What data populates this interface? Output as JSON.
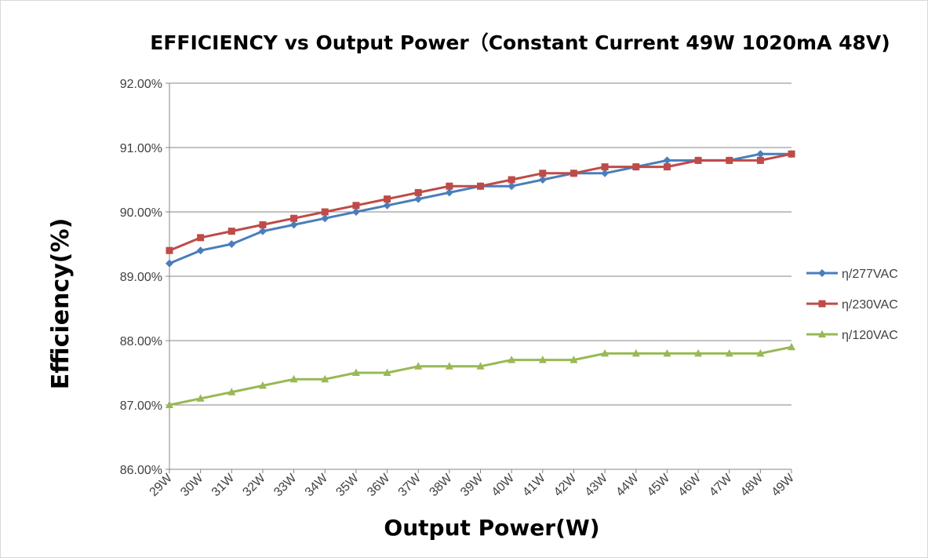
{
  "chart_data": {
    "type": "line",
    "title": "EFFICIENCY vs Output Power（Constant Current 49W 1020mA 48V)",
    "xlabel": "Output Power(W)",
    "ylabel": "Efficiency(%)",
    "categories": [
      "29W",
      "30W",
      "31W",
      "32W",
      "33W",
      "34W",
      "35W",
      "36W",
      "37W",
      "38W",
      "39W",
      "40W",
      "41W",
      "42W",
      "43W",
      "44W",
      "45W",
      "46W",
      "47W",
      "48W",
      "49W"
    ],
    "ylim": [
      86,
      92
    ],
    "yticks": [
      "86.00%",
      "87.00%",
      "88.00%",
      "89.00%",
      "90.00%",
      "91.00%",
      "92.00%"
    ],
    "grid": true,
    "legend_position": "right",
    "series": [
      {
        "name": "η/277VAC",
        "color": "#4a7ebb",
        "marker": "diamond",
        "values": [
          89.2,
          89.4,
          89.5,
          89.7,
          89.8,
          89.9,
          90.0,
          90.1,
          90.2,
          90.3,
          90.4,
          90.4,
          90.5,
          90.6,
          90.6,
          90.7,
          90.8,
          90.8,
          90.8,
          90.9,
          90.9
        ]
      },
      {
        "name": "η/230VAC",
        "color": "#be4b48",
        "marker": "square",
        "values": [
          89.4,
          89.6,
          89.7,
          89.8,
          89.9,
          90.0,
          90.1,
          90.2,
          90.3,
          90.4,
          90.4,
          90.5,
          90.6,
          90.6,
          90.7,
          90.7,
          90.7,
          90.8,
          90.8,
          90.8,
          90.9
        ]
      },
      {
        "name": "η/120VAC",
        "color": "#98b954",
        "marker": "triangle",
        "values": [
          87.0,
          87.1,
          87.2,
          87.3,
          87.4,
          87.4,
          87.5,
          87.5,
          87.6,
          87.6,
          87.6,
          87.7,
          87.7,
          87.7,
          87.8,
          87.8,
          87.8,
          87.8,
          87.8,
          87.8,
          87.9
        ]
      }
    ]
  }
}
